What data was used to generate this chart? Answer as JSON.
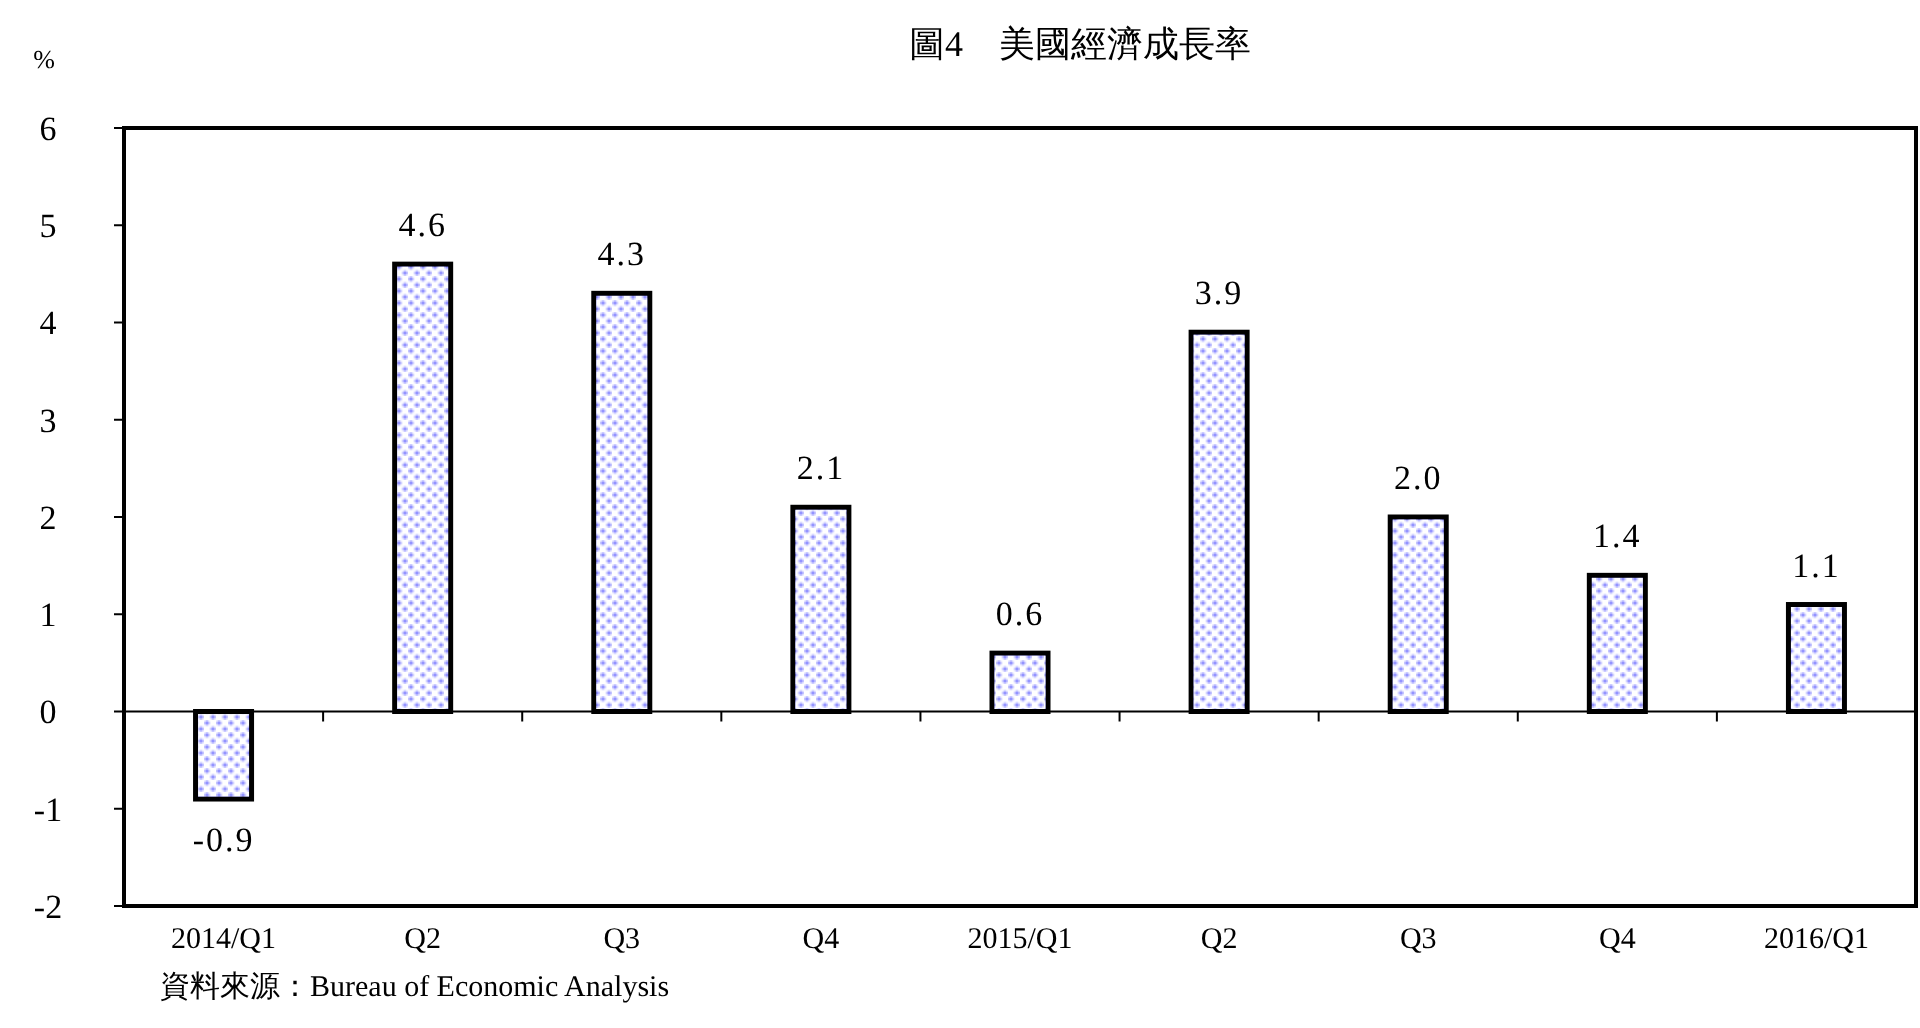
{
  "chart_data": {
    "type": "bar",
    "title": "圖4　美國經濟成長率",
    "ylabel": "%",
    "categories": [
      "2014/Q1",
      "Q2",
      "Q3",
      "Q4",
      "2015/Q1",
      "Q2",
      "Q3",
      "Q4",
      "2016/Q1"
    ],
    "values": [
      -0.9,
      4.6,
      4.3,
      2.1,
      0.6,
      3.9,
      2.0,
      1.4,
      1.1
    ],
    "value_labels": [
      "-0.9",
      "4.6",
      "4.3",
      "2.1",
      "0.6",
      "3.9",
      "2.0",
      "1.4",
      "1.1"
    ],
    "color": "#6f6fff",
    "ylim": [
      -2,
      6
    ],
    "yticks": [
      -2,
      -1,
      0,
      1,
      2,
      3,
      4,
      5,
      6
    ],
    "legend": false,
    "annotations": [
      "資料來源：Bureau of Economic Analysis"
    ]
  }
}
